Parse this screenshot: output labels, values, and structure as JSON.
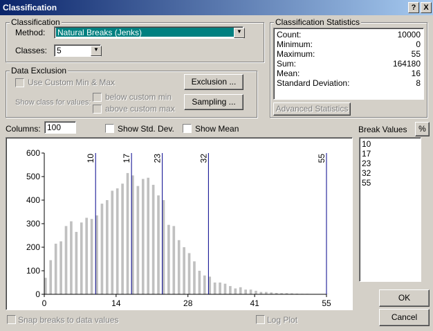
{
  "window": {
    "title": "Classification",
    "help": "?",
    "close": "X"
  },
  "classification": {
    "group": "Classification",
    "method_label": "Method:",
    "method": "Natural Breaks (Jenks)",
    "classes_label": "Classes:",
    "classes": "5"
  },
  "data_exclusion": {
    "group": "Data Exclusion",
    "use_custom": "Use Custom Min & Max",
    "show_class": "Show class for values:",
    "below": "below custom min",
    "above": "above custom max",
    "exclusion_button": "Exclusion ...",
    "sampling_button": "Sampling ..."
  },
  "statistics": {
    "group": "Classification Statistics",
    "rows": [
      [
        "Count:",
        10000
      ],
      [
        "Minimum:",
        0
      ],
      [
        "Maximum:",
        55
      ],
      [
        "Sum:",
        164180
      ],
      [
        "Mean:",
        16
      ],
      [
        "Standard Deviation:",
        8
      ]
    ],
    "button": "Advanced Statistics"
  },
  "columns_label": "Columns:",
  "columns": "100",
  "show_std_dev": "Show Std. Dev.",
  "show_mean": "Show Mean",
  "break_values": {
    "label": "Break Values",
    "percent": "%",
    "values": [
      10,
      17,
      23,
      32,
      55
    ]
  },
  "histogram": {
    "type": "bar",
    "xlim": [
      0,
      55
    ],
    "ylim": [
      0,
      600
    ],
    "xticks": [
      0,
      14,
      28,
      41,
      55
    ],
    "yticks": [
      0,
      100,
      200,
      300,
      400,
      500,
      600
    ],
    "x": [
      0,
      1,
      2,
      3,
      4,
      5,
      6,
      7,
      8,
      9,
      10,
      11,
      12,
      13,
      14,
      15,
      16,
      17,
      18,
      19,
      20,
      21,
      22,
      23,
      24,
      25,
      26,
      27,
      28,
      29,
      30,
      31,
      32,
      33,
      34,
      35,
      36,
      37,
      38,
      39,
      40,
      41,
      42,
      43,
      44,
      45,
      46,
      47,
      48,
      49,
      50,
      51,
      52,
      53,
      54,
      55
    ],
    "counts": [
      70,
      145,
      215,
      225,
      290,
      310,
      265,
      305,
      325,
      320,
      335,
      385,
      400,
      440,
      450,
      470,
      515,
      505,
      460,
      490,
      495,
      465,
      420,
      400,
      295,
      290,
      230,
      200,
      175,
      140,
      100,
      80,
      75,
      50,
      50,
      45,
      35,
      25,
      30,
      20,
      20,
      15,
      10,
      10,
      8,
      6,
      5,
      5,
      4,
      3,
      2,
      2,
      1,
      1,
      1,
      1
    ],
    "color": "#c0c0c0",
    "break_color": "#00008b"
  },
  "snap": "Snap breaks to data values",
  "log_plot": "Log Plot",
  "ok": "OK",
  "cancel": "Cancel"
}
